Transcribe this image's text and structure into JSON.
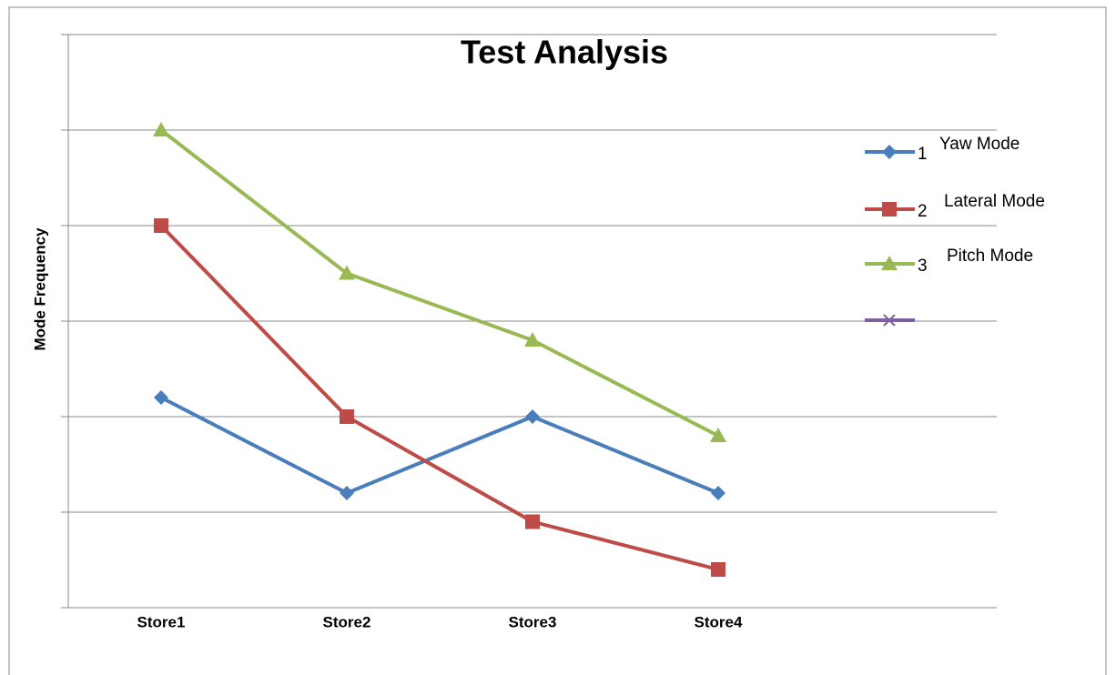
{
  "chart_data": {
    "type": "line",
    "title": "Test Analysis",
    "y_label": "Mode Frequency",
    "categories": [
      "Store1",
      "Store2",
      "Store3",
      "Store4"
    ],
    "series": [
      {
        "name": "1",
        "legend_text": "Yaw Mode",
        "color": "#4a7ebb",
        "marker": "diamond",
        "values": [
          2.2,
          1.2,
          2.0,
          1.2
        ]
      },
      {
        "name": "2",
        "legend_text": "Lateral Mode",
        "color": "#be4b48",
        "marker": "square",
        "values": [
          4.0,
          2.0,
          0.9,
          0.4
        ]
      },
      {
        "name": "3",
        "legend_text": "Pitch Mode",
        "color": "#98b954",
        "marker": "triangle",
        "values": [
          5.0,
          3.5,
          2.8,
          1.8
        ]
      },
      {
        "name": null,
        "color": "#7d5fa0",
        "marker": "x",
        "values": [
          null,
          null,
          null,
          null
        ]
      }
    ],
    "ylim": [
      0,
      6
    ],
    "yticks": [
      0,
      1,
      2,
      3,
      4,
      5,
      6
    ],
    "grid": true,
    "legend": "right"
  }
}
